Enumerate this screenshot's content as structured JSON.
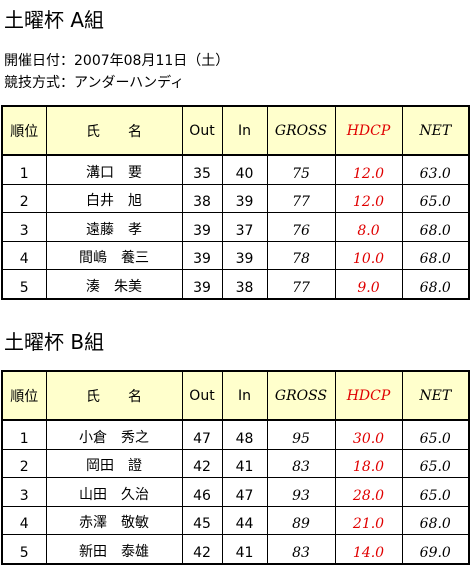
{
  "sections": [
    {
      "title": "土曜杯 A組",
      "info": [
        "開催日付：2007年08月11日（土）",
        "競技方式：アンダーハンディ"
      ],
      "table": {
        "header": [
          "順位",
          "氏　　名",
          "Out",
          "In",
          "GROSS",
          "HDCP",
          "NET"
        ],
        "rows": [
          [
            "1",
            "溝口　要",
            "35",
            "40",
            "75",
            "12.0",
            "63.0"
          ],
          [
            "2",
            "白井　旭",
            "38",
            "39",
            "77",
            "12.0",
            "65.0"
          ],
          [
            "3",
            "遠藤　孝",
            "39",
            "37",
            "76",
            "8.0",
            "68.0"
          ],
          [
            "4",
            "間嶋　養三",
            "39",
            "39",
            "78",
            "10.0",
            "68.0"
          ],
          [
            "5",
            "湊　朱美",
            "39",
            "38",
            "77",
            "9.0",
            "68.0"
          ]
        ]
      }
    },
    {
      "title": "土曜杯 B組",
      "table": {
        "header": [
          "順位",
          "氏　　名",
          "Out",
          "In",
          "GROSS",
          "HDCP",
          "NET"
        ],
        "rows": [
          [
            "1",
            "小倉　秀之",
            "47",
            "48",
            "95",
            "30.0",
            "65.0"
          ],
          [
            "2",
            "岡田　證",
            "42",
            "41",
            "83",
            "18.0",
            "65.0"
          ],
          [
            "3",
            "山田　久治",
            "46",
            "47",
            "93",
            "28.0",
            "65.0"
          ],
          [
            "4",
            "赤澤　敬敏",
            "45",
            "44",
            "89",
            "21.0",
            "68.0"
          ],
          [
            "5",
            "新田　泰雄",
            "42",
            "41",
            "83",
            "14.0",
            "69.0"
          ]
        ]
      }
    }
  ]
}
